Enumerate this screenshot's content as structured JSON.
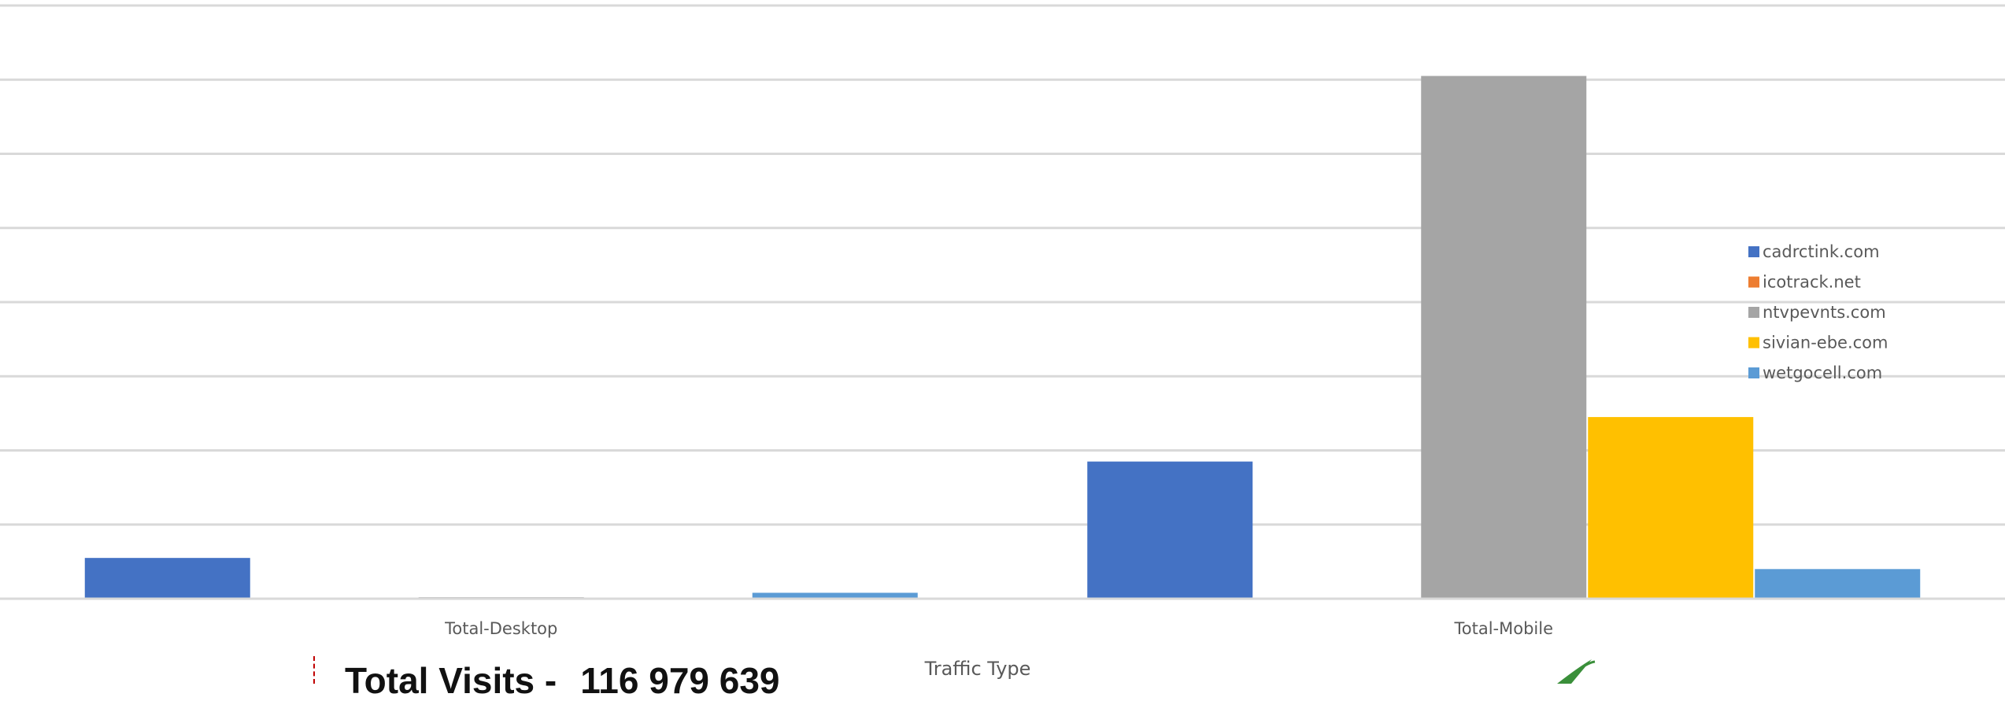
{
  "chart_data": {
    "type": "bar",
    "categories": [
      "Total-Desktop",
      "Total-Mobile"
    ],
    "series": [
      {
        "name": "cadrctink.com",
        "values": [
          0.55,
          1.85
        ]
      },
      {
        "name": "icotrack.net",
        "values": [
          0.01,
          0.0
        ]
      },
      {
        "name": "ntvpevnts.com",
        "values": [
          0.02,
          7.05
        ]
      },
      {
        "name": "sivian-ebe.com",
        "values": [
          0.0,
          2.45
        ]
      },
      {
        "name": "wetgocell.com",
        "values": [
          0.08,
          0.4
        ]
      }
    ],
    "colors": [
      "#4472c4",
      "#ed7d31",
      "#a5a5a5",
      "#ffc000",
      "#5b9bd5"
    ],
    "xlabel": "Traffic Type",
    "ylabel": "",
    "ylim": [
      0,
      8
    ],
    "grid": true,
    "legend_position": "right"
  },
  "caption": {
    "label": "Total Visits -",
    "value": "116 979 639"
  }
}
